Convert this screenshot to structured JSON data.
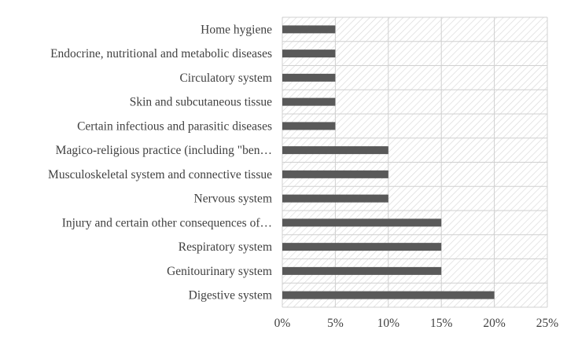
{
  "chart_data": {
    "type": "bar",
    "orientation": "horizontal",
    "categories": [
      "Home hygiene",
      "Endocrine, nutritional and metabolic diseases",
      "Circulatory system",
      "Skin and subcutaneous tissue",
      "Certain infectious and parasitic diseases",
      "Magico-religious practice (including \"ben…",
      "Musculoskeletal system and connective tissue",
      "Nervous system",
      "Injury and certain other consequences of…",
      "Respiratory system",
      "Genitourinary system",
      "Digestive system"
    ],
    "values": [
      5,
      5,
      5,
      5,
      5,
      10,
      10,
      10,
      15,
      15,
      15,
      20
    ],
    "xlim": [
      0,
      25
    ],
    "xticks": [
      "0%",
      "5%",
      "10%",
      "15%",
      "20%",
      "25%"
    ],
    "title": "",
    "xlabel": "",
    "ylabel": "",
    "grid": true,
    "background_pattern": "diagonal-hatch",
    "bar_color": "#595959",
    "grid_color": "#d0d0d0"
  }
}
